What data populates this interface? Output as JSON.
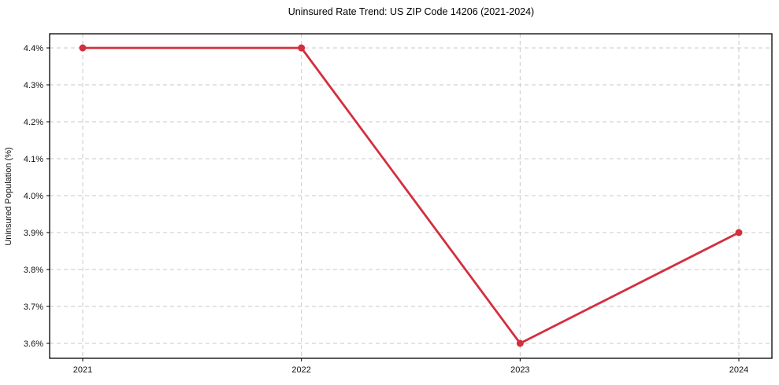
{
  "chart_data": {
    "type": "line",
    "title": "Uninsured Rate Trend: US ZIP Code 14206 (2021-2024)",
    "xlabel": "",
    "ylabel": "Uninsured Population (%)",
    "categories": [
      "2021",
      "2022",
      "2023",
      "2024"
    ],
    "series": [
      {
        "name": "Uninsured Rate",
        "values": [
          4.4,
          4.4,
          3.6,
          3.9
        ]
      }
    ],
    "ylim": [
      3.6,
      4.4
    ],
    "yticks": [
      4.4,
      4.3,
      4.2,
      4.1,
      4.0,
      3.9,
      3.8,
      3.7,
      3.6
    ],
    "ytick_labels": [
      "4.4%",
      "4.3%",
      "4.2%",
      "4.1%",
      "4.0%",
      "3.9%",
      "3.8%",
      "3.7%",
      "3.6%"
    ],
    "grid": "dashed",
    "legend_position": "none",
    "colors": {
      "line": "#d32f3f",
      "marker": "#d32f3f",
      "grid": "#c9c9c9",
      "spine": "#000000",
      "background": "#ffffff"
    }
  }
}
